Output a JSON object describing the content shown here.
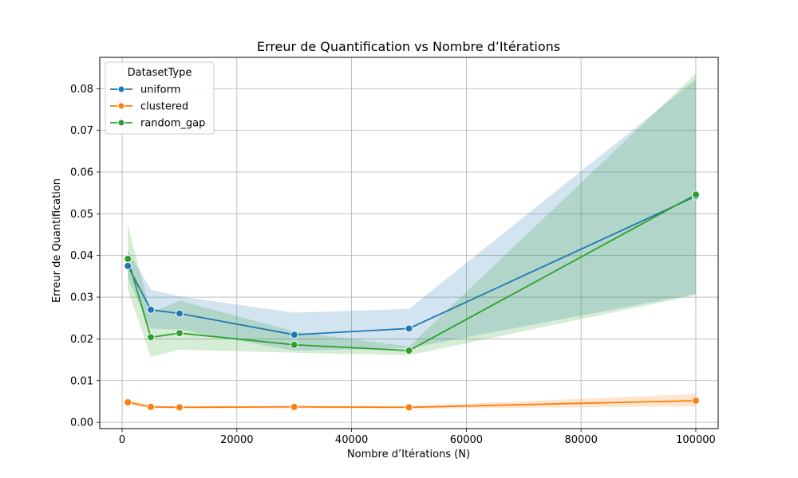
{
  "chart_data": {
    "type": "line",
    "title": "Erreur de Quantification vs Nombre d’Itérations",
    "xlabel": "Nombre d’Itérations (N)",
    "ylabel": "Erreur de Quantification",
    "xlim": [
      -3900,
      103900
    ],
    "ylim": [
      -0.0015,
      0.0875
    ],
    "xticks": [
      0,
      20000,
      40000,
      60000,
      80000,
      100000
    ],
    "xtick_labels": [
      "0",
      "20000",
      "40000",
      "60000",
      "80000",
      "100000"
    ],
    "yticks": [
      0.0,
      0.01,
      0.02,
      0.03,
      0.04,
      0.05,
      0.06,
      0.07,
      0.08
    ],
    "ytick_labels": [
      "0.00",
      "0.01",
      "0.02",
      "0.03",
      "0.04",
      "0.05",
      "0.06",
      "0.07",
      "0.08"
    ],
    "grid": true,
    "legend": {
      "title": "DatasetType",
      "position": "top-left"
    },
    "x": [
      1000,
      5000,
      10000,
      30000,
      50000,
      100000
    ],
    "series": [
      {
        "name": "uniform",
        "color": "#1f77b4",
        "values": [
          0.0375,
          0.027,
          0.0261,
          0.021,
          0.0225,
          0.0542
        ],
        "ci_lower": [
          0.0345,
          0.0225,
          0.0222,
          0.0172,
          0.0178,
          0.0308
        ],
        "ci_upper": [
          0.0413,
          0.0318,
          0.0302,
          0.0263,
          0.0272,
          0.0822
        ]
      },
      {
        "name": "clustered",
        "color": "#ff7f0e",
        "values": [
          0.0048,
          0.0037,
          0.0036,
          0.0037,
          0.0036,
          0.0052
        ],
        "ci_lower": [
          0.0043,
          0.0034,
          0.0034,
          0.0034,
          0.0033,
          0.0038
        ],
        "ci_upper": [
          0.0056,
          0.004,
          0.0039,
          0.004,
          0.0039,
          0.0068
        ]
      },
      {
        "name": "random_gap",
        "color": "#2ca02c",
        "values": [
          0.0392,
          0.0204,
          0.0214,
          0.0186,
          0.0172,
          0.0546
        ],
        "ci_lower": [
          0.0318,
          0.0157,
          0.0174,
          0.0167,
          0.0161,
          0.0305
        ],
        "ci_upper": [
          0.0472,
          0.0262,
          0.0292,
          0.0218,
          0.0182,
          0.0836
        ]
      }
    ]
  }
}
